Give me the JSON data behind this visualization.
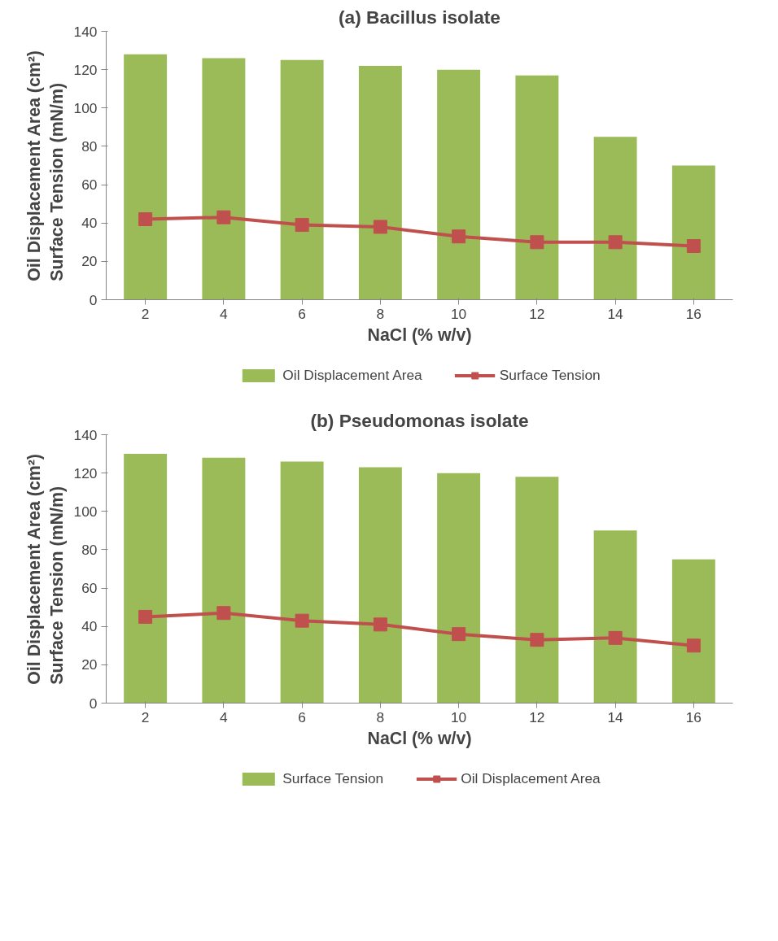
{
  "chart_data": [
    {
      "type": "bar",
      "title": "(a) Bacillus isolate",
      "xlabel": "NaCl (% w/v)",
      "ylabel": "Oil Displacement Area (cm²)\nSurface Tension (mN/m)",
      "categories": [
        "2",
        "4",
        "6",
        "8",
        "10",
        "12",
        "14",
        "16"
      ],
      "ylim": [
        0,
        140
      ],
      "yticks": [
        0,
        20,
        40,
        60,
        80,
        100,
        120,
        140
      ],
      "grid": false,
      "legend": "bottom",
      "marker": "square",
      "series": [
        {
          "name": "Oil Displacement Area",
          "color": "#9bbb59",
          "values": [
            128,
            126,
            125,
            122,
            120,
            117,
            85,
            70
          ]
        },
        {
          "name": "Surface Tension",
          "type": "line",
          "color": "#c0504d",
          "values": [
            42,
            43,
            39,
            38,
            33,
            30,
            30,
            28
          ]
        }
      ]
    },
    {
      "type": "bar",
      "title": "(b) Pseudomonas isolate",
      "xlabel": "NaCl (% w/v)",
      "ylabel": "Oil Displacement Area (cm²)\nSurface Tension (mN/m)",
      "categories": [
        "2",
        "4",
        "6",
        "8",
        "10",
        "12",
        "14",
        "16"
      ],
      "ylim": [
        0,
        140
      ],
      "yticks": [
        0,
        20,
        40,
        60,
        80,
        100,
        120,
        140
      ],
      "grid": false,
      "legend": "bottom",
      "marker": "square",
      "series": [
        {
          "name": "Surface Tension",
          "color": "#9bbb59",
          "values": [
            130,
            128,
            126,
            123,
            120,
            118,
            90,
            75
          ]
        },
        {
          "name": "Oil Displacement Area",
          "type": "line",
          "color": "#c0504d",
          "values": [
            45,
            47,
            43,
            41,
            36,
            33,
            34,
            30
          ]
        }
      ]
    }
  ]
}
